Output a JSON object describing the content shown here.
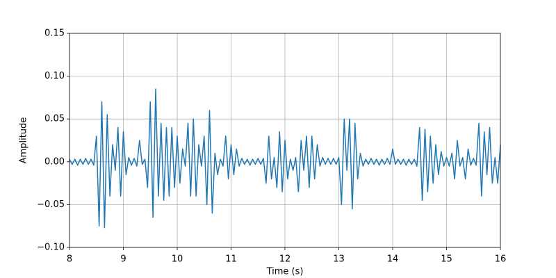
{
  "chart_data": {
    "type": "line",
    "xlabel": "Time (s)",
    "ylabel": "Amplitude",
    "color": "#1f77b4",
    "grid": true,
    "xlim": [
      8,
      16
    ],
    "xticks": [
      8,
      9,
      10,
      11,
      12,
      13,
      14,
      15,
      16
    ],
    "ylim": [
      -0.1,
      0.15
    ],
    "yticks": [
      {
        "value": -0.1,
        "label": "−0.10"
      },
      {
        "value": -0.05,
        "label": "−0.05"
      },
      {
        "value": 0,
        "label": "0.00"
      },
      0.05,
      {
        "value": 0.1,
        "label": "0.10"
      },
      0.15
    ],
    "x": [
      8.0,
      8.05,
      8.1,
      8.15,
      8.2,
      8.25,
      8.3,
      8.35,
      8.4,
      8.45,
      8.5,
      8.55,
      8.6,
      8.65,
      8.7,
      8.75,
      8.8,
      8.85,
      8.9,
      8.95,
      9.0,
      9.05,
      9.1,
      9.15,
      9.2,
      9.25,
      9.3,
      9.35,
      9.4,
      9.45,
      9.5,
      9.55,
      9.6,
      9.65,
      9.7,
      9.75,
      9.8,
      9.85,
      9.9,
      9.95,
      10.0,
      10.05,
      10.1,
      10.15,
      10.2,
      10.25,
      10.3,
      10.35,
      10.4,
      10.45,
      10.5,
      10.55,
      10.6,
      10.65,
      10.7,
      10.75,
      10.8,
      10.85,
      10.9,
      10.95,
      11.0,
      11.05,
      11.1,
      11.15,
      11.2,
      11.25,
      11.3,
      11.35,
      11.4,
      11.45,
      11.5,
      11.55,
      11.6,
      11.65,
      11.7,
      11.75,
      11.8,
      11.85,
      11.9,
      11.95,
      12.0,
      12.05,
      12.1,
      12.15,
      12.2,
      12.25,
      12.3,
      12.35,
      12.4,
      12.45,
      12.5,
      12.55,
      12.6,
      12.65,
      12.7,
      12.75,
      12.8,
      12.85,
      12.9,
      12.95,
      13.0,
      13.05,
      13.1,
      13.15,
      13.2,
      13.25,
      13.3,
      13.35,
      13.4,
      13.45,
      13.5,
      13.55,
      13.6,
      13.65,
      13.7,
      13.75,
      13.8,
      13.85,
      13.9,
      13.95,
      14.0,
      14.05,
      14.1,
      14.15,
      14.2,
      14.25,
      14.3,
      14.35,
      14.4,
      14.45,
      14.5,
      14.55,
      14.6,
      14.65,
      14.7,
      14.75,
      14.8,
      14.85,
      14.9,
      14.95,
      15.0,
      15.05,
      15.1,
      15.15,
      15.2,
      15.25,
      15.3,
      15.35,
      15.4,
      15.45,
      15.5,
      15.55,
      15.6,
      15.65,
      15.7,
      15.75,
      15.8,
      15.85,
      15.9,
      15.95,
      16.0
    ],
    "values": [
      0.003,
      -0.003,
      0.003,
      -0.004,
      0.003,
      -0.003,
      0.004,
      -0.003,
      0.003,
      -0.004,
      0.03,
      -0.075,
      0.07,
      -0.077,
      0.055,
      -0.04,
      0.02,
      -0.01,
      0.04,
      -0.04,
      0.035,
      -0.015,
      0.005,
      -0.004,
      0.004,
      -0.005,
      0.025,
      -0.003,
      0.003,
      -0.03,
      0.07,
      -0.065,
      0.085,
      -0.04,
      0.045,
      -0.045,
      0.04,
      -0.04,
      0.04,
      -0.03,
      0.03,
      -0.025,
      0.015,
      -0.005,
      0.045,
      -0.04,
      0.05,
      -0.04,
      0.02,
      -0.005,
      0.03,
      -0.05,
      0.06,
      -0.06,
      0.01,
      -0.015,
      0.003,
      -0.005,
      0.03,
      -0.02,
      0.02,
      -0.015,
      0.015,
      -0.005,
      0.004,
      -0.003,
      0.003,
      -0.004,
      0.003,
      -0.003,
      0.004,
      -0.003,
      0.004,
      -0.025,
      0.03,
      -0.02,
      0.005,
      -0.03,
      0.035,
      -0.035,
      0.025,
      -0.02,
      0.003,
      -0.01,
      0.005,
      -0.035,
      0.025,
      -0.01,
      0.03,
      -0.03,
      0.03,
      -0.02,
      0.02,
      -0.005,
      0.005,
      -0.003,
      0.004,
      -0.003,
      0.004,
      -0.003,
      0.005,
      -0.05,
      0.05,
      -0.01,
      0.05,
      -0.055,
      0.045,
      -0.02,
      0.01,
      -0.005,
      0.003,
      -0.003,
      0.004,
      -0.003,
      0.003,
      -0.004,
      0.003,
      -0.003,
      0.004,
      -0.003,
      0.015,
      -0.003,
      0.003,
      -0.003,
      0.003,
      -0.004,
      0.003,
      -0.003,
      0.003,
      -0.005,
      0.04,
      -0.045,
      0.038,
      -0.035,
      0.03,
      -0.025,
      0.02,
      -0.015,
      0.012,
      -0.005,
      0.005,
      -0.005,
      0.01,
      -0.02,
      0.025,
      -0.005,
      0.005,
      -0.02,
      0.015,
      -0.004,
      0.004,
      -0.004,
      0.045,
      -0.04,
      0.035,
      -0.015,
      0.04,
      -0.025,
      0.005,
      -0.025,
      0.02
    ]
  }
}
